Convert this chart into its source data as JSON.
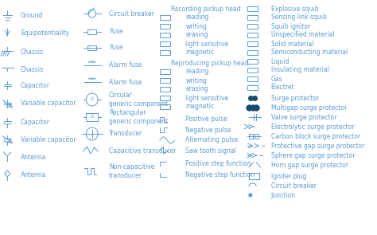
{
  "bg_color": "#ffffff",
  "text_color": "#5b9bd5",
  "symbol_color": "#5b9bd5",
  "font_size": 5.5,
  "col1_items": [
    "Ground",
    "Equipotentiality",
    "Chassis",
    "Chassis",
    "Capacitor",
    "Variable capacitor",
    "Capacitor",
    "Variable capacitor",
    "Antenna",
    "Antenna"
  ],
  "col2_items": [
    "Circuit breaker",
    "Fuse",
    "Fuse",
    "Alarm fuse",
    "Alarm fuse",
    "Circular\ngeneric component",
    "Rectangular\ngeneric component",
    "Transducer",
    "Capacitive transducer",
    "Non-capacitive\ntransducer"
  ],
  "col3_items": [
    "Recording pickup head:",
    "reading",
    "writing",
    "erasing",
    "light sensitive",
    "magnetic",
    "Reproducing pickup head:",
    "reading",
    "writing",
    "erasing",
    "light sensitive",
    "magnetic",
    "Positive pulse",
    "Negative pulse",
    "Alternating pulse",
    "Saw tooth signal",
    "Positive step function",
    "Negative step function"
  ],
  "col4_items": [
    "Explosive squib",
    "Sensing link squib",
    "Squib ignitor",
    "Unspecified material",
    "Solid material",
    "Semiconducting material",
    "Liquid",
    "Insulating material",
    "Gas",
    "Electret",
    "Surge protector",
    "Multigap surge protector",
    "Valve surge protector",
    "Electrolytic surge protector",
    "Carbon block surge protector",
    "Protective gap surge protector",
    "Sphere gap surge protector",
    "Horn gap surge protector",
    "Igniter plug",
    "Circuit breaker",
    "Junction"
  ]
}
